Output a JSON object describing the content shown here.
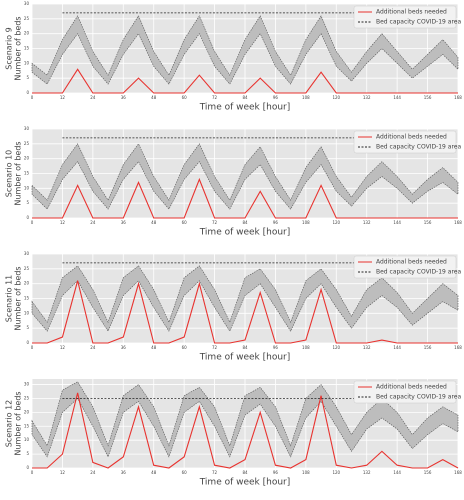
{
  "chart_data": [
    {
      "type": "line",
      "scenario": "Scenario 9",
      "ylabel": "Number of beds",
      "xlabel": "Time of week [hour]",
      "x": [
        0,
        6,
        12,
        18,
        24,
        30,
        36,
        42,
        48,
        54,
        60,
        66,
        72,
        78,
        84,
        90,
        96,
        102,
        108,
        114,
        120,
        126,
        132,
        138,
        144,
        150,
        156,
        162,
        168
      ],
      "xlim": [
        0,
        168
      ],
      "xticks": [
        0,
        12,
        24,
        36,
        48,
        60,
        72,
        84,
        96,
        108,
        120,
        132,
        144,
        156,
        168
      ],
      "ylim": [
        0,
        30
      ],
      "yticks": [
        0,
        5,
        10,
        15,
        20,
        25,
        30
      ],
      "grid": true,
      "legend": "upper right",
      "band": {
        "color": "#bdbdbd",
        "upper": [
          10,
          6,
          18,
          26,
          14,
          6,
          18,
          26,
          14,
          6,
          18,
          26,
          14,
          6,
          18,
          26,
          14,
          6,
          18,
          26,
          14,
          7,
          14,
          20,
          14,
          8,
          13,
          18,
          12
        ],
        "lower": [
          7,
          3,
          13,
          20,
          9,
          3,
          13,
          20,
          9,
          3,
          13,
          20,
          9,
          3,
          13,
          20,
          9,
          3,
          13,
          20,
          9,
          4,
          10,
          15,
          10,
          5,
          9,
          13,
          8
        ]
      },
      "series": [
        {
          "name": "Additional beds needed",
          "color": "#e8332f",
          "style": "solid",
          "values": [
            0,
            0,
            0,
            8,
            0,
            0,
            0,
            5,
            0,
            0,
            0,
            6,
            0,
            0,
            0,
            5,
            0,
            0,
            0,
            7,
            0,
            0,
            0,
            0,
            0,
            0,
            0,
            0,
            0
          ]
        },
        {
          "name": "Bed capacity COVID-19 area",
          "color": "#222222",
          "style": "dashed",
          "values": [
            null,
            null,
            27,
            27,
            27,
            27,
            27,
            27,
            27,
            27,
            27,
            27,
            27,
            27,
            27,
            27,
            27,
            27,
            27,
            27,
            27,
            27,
            27,
            27,
            27,
            27,
            27,
            null,
            null
          ]
        }
      ]
    },
    {
      "type": "line",
      "scenario": "Scenario 10",
      "ylabel": "Number of beds",
      "xlabel": "Time of week [hour]",
      "x": [
        0,
        6,
        12,
        18,
        24,
        30,
        36,
        42,
        48,
        54,
        60,
        66,
        72,
        78,
        84,
        90,
        96,
        102,
        108,
        114,
        120,
        126,
        132,
        138,
        144,
        150,
        156,
        162,
        168
      ],
      "xlim": [
        0,
        168
      ],
      "xticks": [
        0,
        12,
        24,
        36,
        48,
        60,
        72,
        84,
        96,
        108,
        120,
        132,
        144,
        156,
        168
      ],
      "ylim": [
        0,
        30
      ],
      "yticks": [
        0,
        5,
        10,
        15,
        20,
        25,
        30
      ],
      "grid": true,
      "legend": "upper right",
      "band": {
        "color": "#bdbdbd",
        "upper": [
          11,
          6,
          18,
          25,
          14,
          6,
          18,
          25,
          14,
          6,
          18,
          25,
          14,
          6,
          18,
          24,
          14,
          6,
          17,
          24,
          14,
          7,
          14,
          19,
          14,
          8,
          13,
          17,
          12
        ],
        "lower": [
          8,
          3,
          13,
          19,
          9,
          3,
          13,
          19,
          9,
          3,
          13,
          19,
          9,
          3,
          13,
          18,
          9,
          3,
          12,
          18,
          9,
          4,
          10,
          14,
          10,
          5,
          9,
          12,
          8
        ]
      },
      "series": [
        {
          "name": "Additional beds needed",
          "color": "#e8332f",
          "style": "solid",
          "values": [
            0,
            0,
            0,
            11,
            0,
            0,
            0,
            12,
            0,
            0,
            0,
            13,
            0,
            0,
            0,
            9,
            0,
            0,
            0,
            11,
            0,
            0,
            0,
            0,
            0,
            0,
            0,
            0,
            0
          ]
        },
        {
          "name": "Bed capacity COVID-19 area",
          "color": "#222222",
          "style": "dashed",
          "values": [
            null,
            null,
            27,
            27,
            27,
            27,
            27,
            27,
            27,
            27,
            27,
            27,
            27,
            27,
            27,
            27,
            27,
            27,
            27,
            27,
            27,
            27,
            27,
            27,
            27,
            27,
            27,
            null,
            null
          ]
        }
      ]
    },
    {
      "type": "line",
      "scenario": "Scenario 11",
      "ylabel": "Number of beds",
      "xlabel": "Time of week [hour]",
      "x": [
        0,
        6,
        12,
        18,
        24,
        30,
        36,
        42,
        48,
        54,
        60,
        66,
        72,
        78,
        84,
        90,
        96,
        102,
        108,
        114,
        120,
        126,
        132,
        138,
        144,
        150,
        156,
        162,
        168
      ],
      "xlim": [
        0,
        168
      ],
      "xticks": [
        0,
        12,
        24,
        36,
        48,
        60,
        72,
        84,
        96,
        108,
        120,
        132,
        144,
        156,
        168
      ],
      "ylim": [
        0,
        30
      ],
      "yticks": [
        0,
        5,
        10,
        15,
        20,
        25,
        30
      ],
      "grid": true,
      "legend": "upper right",
      "band": {
        "color": "#bdbdbd",
        "upper": [
          14,
          7,
          22,
          26,
          18,
          7,
          22,
          26,
          18,
          7,
          22,
          26,
          18,
          7,
          22,
          25,
          18,
          7,
          21,
          25,
          18,
          9,
          18,
          22,
          17,
          10,
          15,
          20,
          16
        ],
        "lower": [
          10,
          4,
          16,
          21,
          12,
          4,
          16,
          21,
          12,
          4,
          16,
          21,
          12,
          4,
          16,
          20,
          12,
          4,
          15,
          20,
          12,
          5,
          12,
          16,
          12,
          6,
          10,
          14,
          11
        ]
      },
      "series": [
        {
          "name": "Additional beds needed",
          "color": "#e8332f",
          "style": "solid",
          "values": [
            0,
            0,
            2,
            21,
            0,
            0,
            2,
            20,
            0,
            0,
            2,
            20,
            0,
            0,
            1,
            17,
            0,
            0,
            1,
            18,
            0,
            0,
            0,
            1,
            0,
            0,
            0,
            0,
            0
          ]
        },
        {
          "name": "Bed capacity COVID-19 area",
          "color": "#222222",
          "style": "dashed",
          "values": [
            null,
            null,
            27,
            27,
            27,
            27,
            27,
            27,
            27,
            27,
            27,
            27,
            27,
            27,
            27,
            27,
            27,
            27,
            27,
            27,
            27,
            27,
            27,
            27,
            27,
            27,
            27,
            null,
            null
          ]
        }
      ]
    },
    {
      "type": "line",
      "scenario": "Scenario 12",
      "ylabel": "Number of beds",
      "xlabel": "Time of week [hour]",
      "x": [
        0,
        6,
        12,
        18,
        24,
        30,
        36,
        42,
        48,
        54,
        60,
        66,
        72,
        78,
        84,
        90,
        96,
        102,
        108,
        114,
        120,
        126,
        132,
        138,
        144,
        150,
        156,
        162,
        168
      ],
      "xlim": [
        0,
        168
      ],
      "xticks": [
        0,
        12,
        24,
        36,
        48,
        60,
        72,
        84,
        96,
        108,
        120,
        132,
        144,
        156,
        168
      ],
      "ylim": [
        0,
        32
      ],
      "yticks": [
        0,
        5,
        10,
        15,
        20,
        25,
        30
      ],
      "grid": true,
      "legend": "upper right",
      "band": {
        "color": "#bdbdbd",
        "upper": [
          17,
          8,
          28,
          31,
          22,
          8,
          26,
          30,
          22,
          8,
          26,
          29,
          22,
          8,
          26,
          29,
          22,
          8,
          25,
          30,
          22,
          12,
          20,
          25,
          20,
          12,
          18,
          22,
          19
        ],
        "lower": [
          12,
          4,
          20,
          25,
          15,
          4,
          20,
          24,
          15,
          4,
          20,
          24,
          15,
          4,
          19,
          23,
          15,
          4,
          18,
          24,
          15,
          6,
          14,
          18,
          14,
          7,
          12,
          16,
          13
        ]
      },
      "series": [
        {
          "name": "Additional beds needed",
          "color": "#e8332f",
          "style": "solid",
          "values": [
            0,
            0,
            5,
            27,
            2,
            0,
            4,
            22,
            1,
            0,
            4,
            22,
            1,
            0,
            3,
            20,
            1,
            0,
            3,
            26,
            1,
            0,
            1,
            6,
            1,
            0,
            0,
            3,
            0
          ]
        },
        {
          "name": "Bed capacity COVID-19 area",
          "color": "#222222",
          "style": "dashed",
          "values": [
            null,
            null,
            25,
            25,
            25,
            25,
            25,
            25,
            25,
            25,
            25,
            25,
            25,
            25,
            25,
            25,
            25,
            25,
            25,
            25,
            25,
            25,
            25,
            25,
            25,
            25,
            25,
            null,
            null
          ]
        }
      ]
    }
  ]
}
